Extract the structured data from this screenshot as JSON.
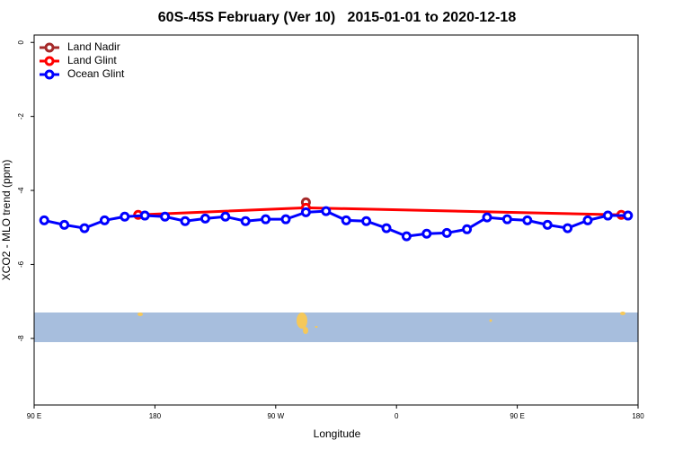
{
  "chart_data": {
    "type": "line",
    "title": "60S-45S February (Ver 10)   2015-01-01 to 2020-12-18",
    "xlabel": "Longitude",
    "ylabel": "XCO2 - MLO trend (ppm)",
    "xlim": [
      90,
      540
    ],
    "ylim": [
      -9.8,
      0.2
    ],
    "xticks": [
      {
        "value": 90,
        "label": "90 E"
      },
      180,
      {
        "value": 270,
        "label": "90 W"
      },
      {
        "value": 360,
        "label": "0"
      },
      {
        "value": 450,
        "label": "90 E"
      },
      {
        "value": 540,
        "label": "180"
      }
    ],
    "yticks": [
      0,
      -2,
      -4,
      -6,
      -8
    ],
    "legend": "top-left",
    "series": [
      {
        "name": "Land Nadir",
        "color": "#a52a2a",
        "x": [
          292.5
        ],
        "values": [
          -4.32
        ]
      },
      {
        "name": "Land Glint",
        "color": "#ff0000",
        "x": [
          167.5,
          292.5,
          527.5
        ],
        "values": [
          -4.66,
          -4.47,
          -4.66
        ]
      },
      {
        "name": "Ocean Glint",
        "color": "#0000ff",
        "x": [
          97.5,
          112.5,
          127.5,
          142.5,
          157.5,
          172.5,
          187.5,
          202.5,
          217.5,
          232.5,
          247.5,
          262.5,
          277.5,
          292.5,
          307.5,
          322.5,
          337.5,
          352.5,
          367.5,
          382.5,
          397.5,
          412.5,
          427.5,
          442.5,
          457.5,
          472.5,
          487.5,
          502.5,
          517.5,
          532.5
        ],
        "values": [
          -4.81,
          -4.93,
          -5.02,
          -4.81,
          -4.71,
          -4.68,
          -4.71,
          -4.83,
          -4.76,
          -4.71,
          -4.83,
          -4.78,
          -4.78,
          -4.59,
          -4.56,
          -4.81,
          -4.83,
          -5.02,
          -5.24,
          -5.17,
          -5.15,
          -5.05,
          -4.73,
          -4.78,
          -4.81,
          -4.93,
          -5.02,
          -4.81,
          -4.68,
          -4.68
        ]
      }
    ]
  }
}
